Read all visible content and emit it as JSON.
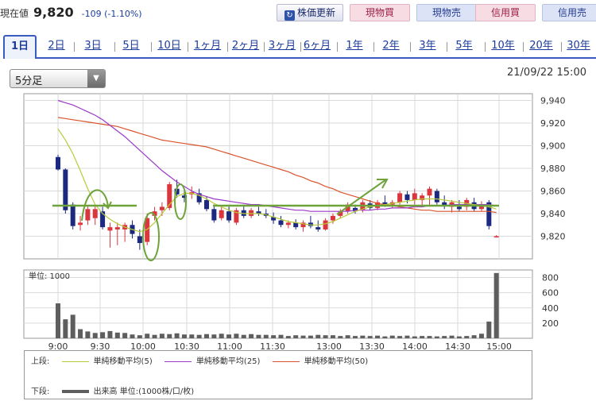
{
  "header": {
    "price_label": "現在値",
    "price_value": "9,820",
    "price_change": "-109 (-1.10%)",
    "refresh_button": "株価更新",
    "refresh_icon": "refresh-icon",
    "buttons": [
      "現物買",
      "現物売",
      "信用買",
      "信用売"
    ]
  },
  "tabs": [
    "1日",
    "2日",
    "3日",
    "5日",
    "10日",
    "1ヶ月",
    "2ヶ月",
    "3ヶ月",
    "6ヶ月",
    "1年",
    "2年",
    "3年",
    "5年",
    "10年",
    "20年",
    "30年"
  ],
  "active_tab": "1日",
  "interval_select": {
    "selected": "5分足"
  },
  "timestamp": "21/09/22 15:00",
  "legend": {
    "upper_label": "上段:",
    "lower_label": "下段:",
    "sma5": "単純移動平均(5)",
    "sma25": "単純移動平均(25)",
    "sma50": "単純移動平均(50)",
    "volume": "出来高 単位:(1000株/口/枚)"
  },
  "colors": {
    "up": "#d9363e",
    "down": "#1b2a80",
    "sma5": "#b8cc3a",
    "sma25": "#9a39c8",
    "sma50": "#d9542c",
    "volume": "#5e5e5e",
    "annotation": "#6ea33a",
    "accent": "#3a5bbf"
  },
  "chart_data": [
    {
      "type": "candlestick",
      "y_ticks": [
        "9,940",
        "9,920",
        "9,900",
        "9,880",
        "9,860",
        "9,840",
        "9,820"
      ],
      "ylim": [
        9800,
        9946
      ],
      "x_ticks": [
        "9:00",
        "9:30",
        "10:00",
        "10:30",
        "11:00",
        "11:30",
        "13:00",
        "13:30",
        "14:00",
        "14:30",
        "15:00"
      ],
      "grid": true,
      "candles": [
        {
          "o": 9890,
          "h": 9892,
          "l": 9878,
          "c": 9879
        },
        {
          "o": 9879,
          "h": 9880,
          "l": 9840,
          "c": 9843
        },
        {
          "o": 9848,
          "h": 9850,
          "l": 9826,
          "c": 9829
        },
        {
          "o": 9830,
          "h": 9838,
          "l": 9825,
          "c": 9832
        },
        {
          "o": 9834,
          "h": 9847,
          "l": 9830,
          "c": 9844
        },
        {
          "o": 9836,
          "h": 9847,
          "l": 9830,
          "c": 9844
        },
        {
          "o": 9842,
          "h": 9846,
          "l": 9826,
          "c": 9828
        },
        {
          "o": 9825,
          "h": 9832,
          "l": 9810,
          "c": 9828
        },
        {
          "o": 9826,
          "h": 9832,
          "l": 9812,
          "c": 9828
        },
        {
          "o": 9826,
          "h": 9832,
          "l": 9815,
          "c": 9830
        },
        {
          "o": 9830,
          "h": 9834,
          "l": 9818,
          "c": 9822
        },
        {
          "o": 9820,
          "h": 9826,
          "l": 9808,
          "c": 9814
        },
        {
          "o": 9815,
          "h": 9840,
          "l": 9812,
          "c": 9836
        },
        {
          "o": 9838,
          "h": 9846,
          "l": 9834,
          "c": 9842
        },
        {
          "o": 9843,
          "h": 9850,
          "l": 9838,
          "c": 9846
        },
        {
          "o": 9845,
          "h": 9868,
          "l": 9843,
          "c": 9866
        },
        {
          "o": 9862,
          "h": 9870,
          "l": 9854,
          "c": 9857
        },
        {
          "o": 9856,
          "h": 9862,
          "l": 9850,
          "c": 9854
        },
        {
          "o": 9857,
          "h": 9864,
          "l": 9853,
          "c": 9859
        },
        {
          "o": 9858,
          "h": 9862,
          "l": 9848,
          "c": 9850
        },
        {
          "o": 9852,
          "h": 9855,
          "l": 9842,
          "c": 9844
        },
        {
          "o": 9844,
          "h": 9848,
          "l": 9832,
          "c": 9834
        },
        {
          "o": 9836,
          "h": 9846,
          "l": 9834,
          "c": 9843
        },
        {
          "o": 9842,
          "h": 9846,
          "l": 9832,
          "c": 9834
        },
        {
          "o": 9832,
          "h": 9845,
          "l": 9830,
          "c": 9843
        },
        {
          "o": 9843,
          "h": 9848,
          "l": 9836,
          "c": 9838
        },
        {
          "o": 9838,
          "h": 9845,
          "l": 9836,
          "c": 9843
        },
        {
          "o": 9842,
          "h": 9846,
          "l": 9838,
          "c": 9840
        },
        {
          "o": 9840,
          "h": 9844,
          "l": 9836,
          "c": 9838
        },
        {
          "o": 9837,
          "h": 9841,
          "l": 9831,
          "c": 9834
        },
        {
          "o": 9834,
          "h": 9838,
          "l": 9828,
          "c": 9830
        },
        {
          "o": 9830,
          "h": 9834,
          "l": 9827,
          "c": 9832
        },
        {
          "o": 9832,
          "h": 9835,
          "l": 9826,
          "c": 9828
        },
        {
          "o": 9828,
          "h": 9834,
          "l": 9824,
          "c": 9832
        },
        {
          "o": 9832,
          "h": 9838,
          "l": 9827,
          "c": 9829
        },
        {
          "o": 9828,
          "h": 9834,
          "l": 9824,
          "c": 9826
        },
        {
          "o": 9826,
          "h": 9836,
          "l": 9825,
          "c": 9834
        },
        {
          "o": 9834,
          "h": 9840,
          "l": 9831,
          "c": 9838
        },
        {
          "o": 9838,
          "h": 9844,
          "l": 9836,
          "c": 9842
        },
        {
          "o": 9842,
          "h": 9850,
          "l": 9840,
          "c": 9848
        },
        {
          "o": 9845,
          "h": 9848,
          "l": 9840,
          "c": 9842
        },
        {
          "o": 9843,
          "h": 9852,
          "l": 9841,
          "c": 9850
        },
        {
          "o": 9849,
          "h": 9852,
          "l": 9843,
          "c": 9845
        },
        {
          "o": 9845,
          "h": 9852,
          "l": 9843,
          "c": 9850
        },
        {
          "o": 9850,
          "h": 9856,
          "l": 9846,
          "c": 9848
        },
        {
          "o": 9848,
          "h": 9852,
          "l": 9845,
          "c": 9850
        },
        {
          "o": 9850,
          "h": 9860,
          "l": 9848,
          "c": 9858
        },
        {
          "o": 9857,
          "h": 9860,
          "l": 9849,
          "c": 9852
        },
        {
          "o": 9852,
          "h": 9862,
          "l": 9848,
          "c": 9858
        },
        {
          "o": 9852,
          "h": 9858,
          "l": 9846,
          "c": 9856
        },
        {
          "o": 9856,
          "h": 9864,
          "l": 9846,
          "c": 9862
        },
        {
          "o": 9860,
          "h": 9862,
          "l": 9848,
          "c": 9850
        },
        {
          "o": 9850,
          "h": 9856,
          "l": 9844,
          "c": 9847
        },
        {
          "o": 9846,
          "h": 9852,
          "l": 9841,
          "c": 9850
        },
        {
          "o": 9846,
          "h": 9852,
          "l": 9842,
          "c": 9844
        },
        {
          "o": 9846,
          "h": 9854,
          "l": 9843,
          "c": 9852
        },
        {
          "o": 9850,
          "h": 9854,
          "l": 9842,
          "c": 9844
        },
        {
          "o": 9844,
          "h": 9851,
          "l": 9842,
          "c": 9848
        },
        {
          "o": 9850,
          "h": 9852,
          "l": 9826,
          "c": 9829
        },
        {
          "o": 9820,
          "h": 9821,
          "l": 9819,
          "c": 9820
        }
      ],
      "sma5": [
        9915,
        9905,
        9893,
        9878,
        9862,
        9848,
        9840,
        9835,
        9831,
        9828,
        9826,
        9824,
        9826,
        9832,
        9840,
        9848,
        9855,
        9858,
        9858,
        9856,
        9853,
        9849,
        9846,
        9843,
        9841,
        9840,
        9840,
        9840,
        9839,
        9837,
        9835,
        9833,
        9832,
        9831,
        9830,
        9830,
        9831,
        9833,
        9836,
        9839,
        9842,
        9844,
        9846,
        9847,
        9848,
        9849,
        9850,
        9851,
        9852,
        9853,
        9853,
        9853,
        9852,
        9851,
        9850,
        9849,
        9848,
        9847,
        9846,
        9844
      ],
      "sma25": [
        9940,
        9938,
        9936,
        9933,
        9930,
        9927,
        9923,
        9918,
        9913,
        9908,
        9902,
        9896,
        9890,
        9884,
        9878,
        9873,
        9868,
        9864,
        9860,
        9857,
        9855,
        9853,
        9852,
        9851,
        9850,
        9849,
        9848,
        9848,
        9847,
        9846,
        9845,
        9844,
        9843,
        9843,
        9842,
        9842,
        9842,
        9842,
        9842,
        9842,
        9843,
        9843,
        9843,
        9844,
        9844,
        9845,
        9845,
        9845,
        9846,
        9846,
        9847,
        9847,
        9847,
        9848,
        9848,
        9848,
        9848,
        9848,
        9848,
        9847
      ],
      "sma50": [
        9925,
        9924,
        9923,
        9922,
        9921,
        9920,
        9919,
        9918,
        9917,
        9915,
        9913,
        9911,
        9909,
        9907,
        9905,
        9904,
        9903,
        9902,
        9901,
        9900,
        9899,
        9897,
        9895,
        9893,
        9891,
        9889,
        9887,
        9885,
        9883,
        9881,
        9879,
        9877,
        9874,
        9872,
        9869,
        9867,
        9864,
        9862,
        9859,
        9857,
        9855,
        9853,
        9851,
        9849,
        9848,
        9847,
        9846,
        9845,
        9844,
        9843,
        9843,
        9842,
        9842,
        9842,
        9842,
        9842,
        9842,
        9842,
        9842,
        9841
      ]
    },
    {
      "type": "bar",
      "unit_label": "単位: 1000",
      "y_ticks": [
        "800",
        "600",
        "400",
        "200"
      ],
      "ylim": [
        0,
        900
      ],
      "values": [
        460,
        250,
        310,
        120,
        90,
        70,
        80,
        95,
        75,
        70,
        50,
        40,
        60,
        45,
        60,
        55,
        65,
        50,
        50,
        45,
        55,
        50,
        60,
        50,
        60,
        45,
        55,
        45,
        45,
        40,
        45,
        30,
        40,
        35,
        35,
        45,
        40,
        40,
        30,
        40,
        30,
        35,
        30,
        35,
        25,
        35,
        30,
        35,
        25,
        30,
        30,
        25,
        30,
        35,
        25,
        30,
        40,
        60,
        220,
        860
      ]
    }
  ]
}
